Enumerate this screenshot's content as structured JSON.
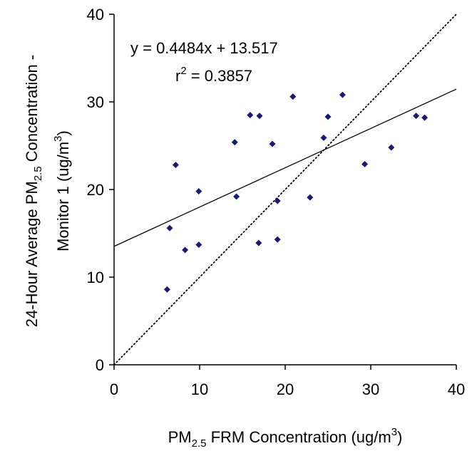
{
  "chart_data": {
    "type": "scatter",
    "xlim": [
      0,
      40
    ],
    "ylim": [
      0,
      40
    ],
    "x_ticks": [
      "0",
      "10",
      "20",
      "30",
      "40"
    ],
    "y_ticks": [
      "0",
      "10",
      "20",
      "30",
      "40"
    ],
    "grid": false,
    "xlabel": {
      "pre": "PM",
      "sub": "2.5",
      "post": " FRM Concentration (ug/m",
      "sup": "3",
      "end": ")"
    },
    "ylabel": {
      "line1_pre": "24-Hour Average PM",
      "line1_sub": "2.5",
      "line1_post": " Concentration -",
      "line2_pre": "Monitor 1 (ug/m",
      "line2_sup": "3",
      "line2_end": ")"
    },
    "annotations": {
      "equation": "y = 0.4484x + 13.517",
      "r2_pre": "r",
      "r2_sup": "2",
      "r2_post": " = 0.3857"
    },
    "marker_color": "#1a1a6e",
    "trendline": {
      "slope": 0.4484,
      "intercept": 13.517,
      "style": "solid",
      "color": "#000000"
    },
    "reference_line": {
      "slope": 1,
      "intercept": 0,
      "style": "dotted",
      "color": "#000000"
    },
    "series": [
      {
        "points": [
          [
            6.2,
            8.6
          ],
          [
            6.5,
            15.6
          ],
          [
            7.2,
            22.8
          ],
          [
            8.3,
            13.1
          ],
          [
            9.9,
            19.8
          ],
          [
            9.9,
            13.7
          ],
          [
            14.1,
            25.4
          ],
          [
            14.3,
            19.2
          ],
          [
            15.9,
            28.5
          ],
          [
            16.9,
            13.9
          ],
          [
            17.0,
            28.4
          ],
          [
            18.5,
            25.2
          ],
          [
            19.1,
            18.7
          ],
          [
            19.1,
            14.3
          ],
          [
            20.9,
            30.6
          ],
          [
            22.9,
            19.1
          ],
          [
            24.5,
            25.9
          ],
          [
            25.0,
            28.3
          ],
          [
            26.7,
            30.8
          ],
          [
            29.3,
            22.9
          ],
          [
            32.4,
            24.8
          ],
          [
            35.3,
            28.4
          ],
          [
            36.3,
            28.2
          ]
        ]
      }
    ]
  }
}
